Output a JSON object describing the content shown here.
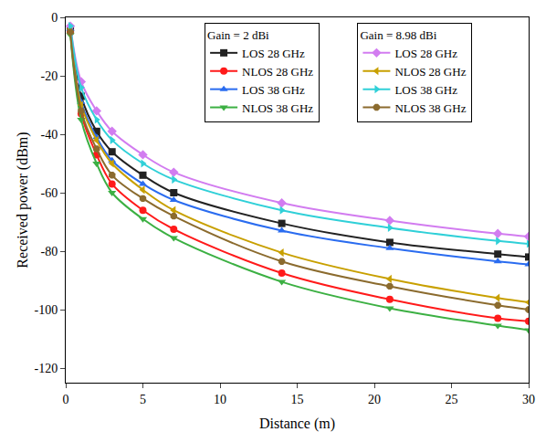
{
  "chart_data": {
    "type": "line",
    "x_label": "Distance (m)",
    "y_label": "Received power (dBm)",
    "x": [
      0.3,
      1,
      2,
      3,
      5,
      7,
      14,
      21,
      28,
      30
    ],
    "xlim": [
      0,
      30
    ],
    "ylim": [
      -125,
      0
    ],
    "xticks": [
      0,
      5,
      10,
      15,
      20,
      25,
      30
    ],
    "yticks": [
      -120,
      -100,
      -80,
      -60,
      -40,
      -20,
      0
    ],
    "grid": false,
    "legend": "top",
    "series": [
      {
        "name": "LOS 28 GHz",
        "group": "Gain = 2 dBi",
        "color": "#222222",
        "marker": "square",
        "values": [
          -4,
          -27,
          -39,
          -46,
          -54,
          -60,
          -70.5,
          -77,
          -81,
          -82
        ]
      },
      {
        "name": "NLOS 28 GHz",
        "group": "Gain = 2 dBi",
        "color": "#ff1a1a",
        "marker": "circle",
        "values": [
          -5,
          -33,
          -47,
          -57,
          -66,
          -72.5,
          -87.5,
          -96.5,
          -103,
          -104
        ]
      },
      {
        "name": "LOS 38 GHz",
        "group": "Gain = 2 dBi",
        "color": "#2a6cf0",
        "marker": "triangle-up",
        "values": [
          -4,
          -29,
          -41,
          -49,
          -57,
          -62.5,
          -73,
          -79,
          -83.5,
          -84.5
        ]
      },
      {
        "name": "NLOS 38 GHz",
        "group": "Gain = 2 dBi",
        "color": "#3cb043",
        "marker": "triangle-down",
        "values": [
          -6,
          -35,
          -50,
          -60,
          -69,
          -75.5,
          -90.5,
          -99.5,
          -105.5,
          -107
        ]
      },
      {
        "name": "LOS 28 GHz",
        "group": "Gain = 8.98 dBi",
        "color": "#d27cf0",
        "marker": "diamond",
        "values": [
          -3,
          -22,
          -32,
          -39,
          -47,
          -53,
          -63.5,
          -69.5,
          -74,
          -75
        ]
      },
      {
        "name": "NLOS 28 GHz",
        "group": "Gain = 8.98 dBi",
        "color": "#c8a000",
        "marker": "triangle-left",
        "values": [
          -4,
          -30,
          -42,
          -50,
          -59,
          -66,
          -80.5,
          -89.5,
          -96,
          -97.5
        ]
      },
      {
        "name": "LOS 38 GHz",
        "group": "Gain = 8.98 dBi",
        "color": "#30d0d8",
        "marker": "triangle-right",
        "values": [
          -3,
          -24,
          -35,
          -42,
          -50,
          -55.5,
          -66,
          -72,
          -76.5,
          -77.5
        ]
      },
      {
        "name": "NLOS 38 GHz",
        "group": "Gain = 8.98 dBi",
        "color": "#8b6b2e",
        "marker": "octagon",
        "values": [
          -5,
          -32,
          -45,
          -54,
          -62,
          -68,
          -83.5,
          -92,
          -98.5,
          -100
        ]
      }
    ]
  }
}
